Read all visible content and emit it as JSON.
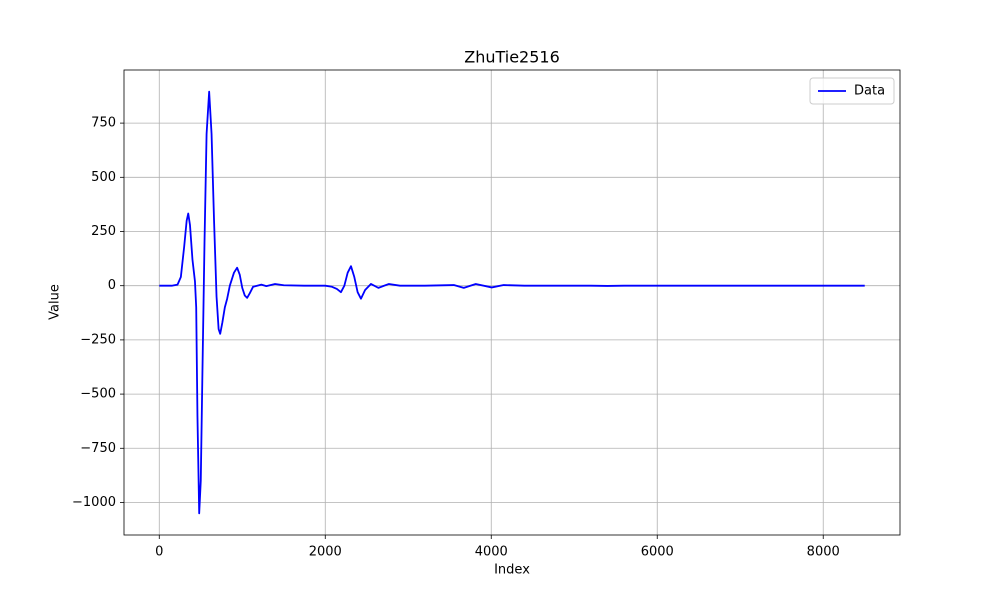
{
  "chart_data": {
    "type": "line",
    "title": "ZhuTie2516",
    "xlabel": "Index",
    "ylabel": "Value",
    "x": [
      0,
      150,
      220,
      260,
      300,
      330,
      349,
      370,
      400,
      430,
      445,
      460,
      481,
      500,
      520,
      545,
      570,
      601,
      630,
      660,
      690,
      715,
      734,
      760,
      790,
      818,
      850,
      900,
      938,
      970,
      1000,
      1030,
      1059,
      1090,
      1130,
      1179,
      1230,
      1290,
      1395,
      1500,
      1745,
      2000,
      2081,
      2140,
      2189,
      2230,
      2270,
      2310,
      2350,
      2390,
      2430,
      2480,
      2550,
      2640,
      2767,
      2900,
      3200,
      3549,
      3669,
      3813,
      4006,
      4150,
      4400,
      5200,
      5400,
      5600,
      8500
    ],
    "series": [
      {
        "name": "Data",
        "color": "#0000ff",
        "values": [
          0,
          0,
          5,
          40,
          180,
          300,
          333,
          280,
          120,
          20,
          -100,
          -600,
          -1050,
          -900,
          -400,
          200,
          700,
          895,
          700,
          300,
          -50,
          -200,
          -222,
          -170,
          -100,
          -60,
          0,
          60,
          83,
          50,
          -10,
          -45,
          -56,
          -35,
          -5,
          0,
          5,
          -2,
          8,
          2,
          0,
          0,
          -5,
          -15,
          -30,
          0,
          60,
          90,
          40,
          -30,
          -60,
          -20,
          8,
          -10,
          8,
          0,
          0,
          3,
          -10,
          8,
          -8,
          3,
          0,
          0,
          -1,
          0,
          0
        ]
      }
    ],
    "xlim": [
      -425,
      8925
    ],
    "ylim": [
      -1150,
      995
    ],
    "xticks": [
      0,
      2000,
      4000,
      6000,
      8000
    ],
    "yticks": [
      {
        "value": -1000,
        "label": "−1000"
      },
      {
        "value": -750,
        "label": "−750"
      },
      {
        "value": -500,
        "label": "−500"
      },
      {
        "value": -250,
        "label": "−250"
      },
      0,
      250,
      500,
      750
    ],
    "grid": true,
    "legend": "upper right"
  }
}
